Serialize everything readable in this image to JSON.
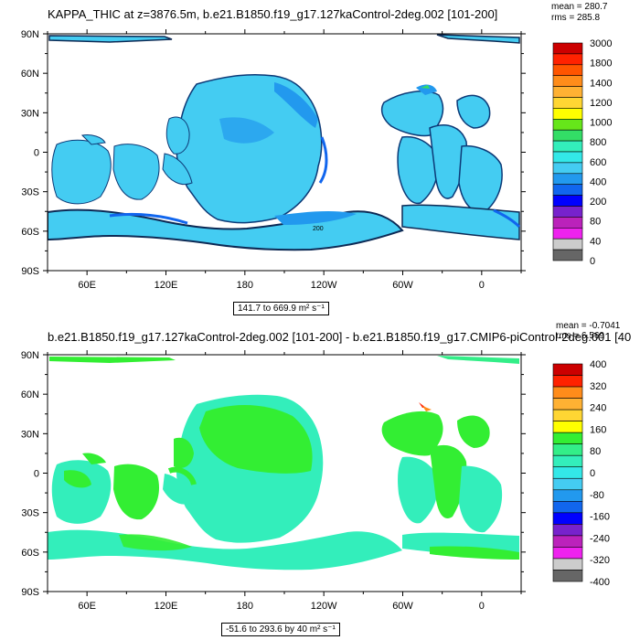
{
  "panels": [
    {
      "title": "KAPPA_THIC at z=3876.5m, b.e21.B1850.f19_g17.127kaControl-2deg.002 [101-200]",
      "stats": {
        "mean": "mean = 280.7",
        "rms": "rms = 285.8"
      },
      "range_text": "141.7 to 669.9 m² s⁻¹",
      "contour_label": "200",
      "colorbar_labels": [
        "3000",
        "1800",
        "1400",
        "1200",
        "1000",
        "800",
        "600",
        "400",
        "200",
        "80",
        "40",
        "0"
      ],
      "colorbar_colors": [
        "#cc0000",
        "#ff2200",
        "#ff5500",
        "#ff8c1a",
        "#ffb133",
        "#ffd633",
        "#ffff00",
        "#66e61a",
        "#33dd66",
        "#33eebb",
        "#33e8e8",
        "#44ccf2",
        "#2299ee",
        "#1166ee",
        "#0000ff",
        "#7722cc",
        "#bb22bb",
        "#ee22ee",
        "#cccccc",
        "#666666"
      ]
    },
    {
      "title": "b.e21.B1850.f19_g17.127kaControl-2deg.002 [101-200] - b.e21.B1850.f19_g17.CMIP6-piControl-2deg.001 [40",
      "stats": {
        "mean": "mean = -0.7041",
        "rms": "rms = 6.569"
      },
      "range_text": "-51.6 to 293.6 by 40 m² s⁻¹",
      "colorbar_labels": [
        "400",
        "320",
        "240",
        "160",
        "80",
        "0",
        "-80",
        "-160",
        "-240",
        "-320",
        "-400"
      ],
      "colorbar_colors": [
        "#cc0000",
        "#ff2200",
        "#ff8c1a",
        "#ffb133",
        "#ffd633",
        "#ffff00",
        "#33ee33",
        "#33ee88",
        "#33eebb",
        "#33e8e8",
        "#44ccf2",
        "#2299ee",
        "#1166ee",
        "#0000ff",
        "#7722cc",
        "#bb22bb",
        "#ee22ee",
        "#cccccc",
        "#666666"
      ]
    }
  ],
  "chart_data": [
    {
      "type": "heatmap",
      "title": "KAPPA_THIC at z=3876.5m, b.e21.B1850.f19_g17.127kaControl-2deg.002 [101-200]",
      "projection": "cylindrical equidistant, longitude 30E to 30E",
      "x_tick_labels": [
        "60E",
        "120E",
        "180",
        "120W",
        "60W",
        "0"
      ],
      "y_tick_labels": [
        "90N",
        "60N",
        "30N",
        "0",
        "30S",
        "60S",
        "90S"
      ],
      "xlim": [
        30,
        390
      ],
      "ylim": [
        -90,
        90
      ],
      "units": "m² s⁻¹",
      "mean": 280.7,
      "rms": 285.8,
      "min": 141.7,
      "max": 669.9,
      "contour_levels": [
        0,
        40,
        80,
        200,
        400,
        600,
        800,
        1000,
        1200,
        1400,
        1800,
        3000
      ],
      "dominant_level_band": [
        200,
        400
      ],
      "dominant_color": "#44ccf2"
    },
    {
      "type": "heatmap",
      "title": "b.e21.B1850.f19_g17.127kaControl-2deg.002 [101-200] - b.e21.B1850.f19_g17.CMIP6-piControl-2deg.001 [40",
      "projection": "cylindrical equidistant, longitude 30E to 30E",
      "x_tick_labels": [
        "60E",
        "120E",
        "180",
        "120W",
        "60W",
        "0"
      ],
      "y_tick_labels": [
        "90N",
        "60N",
        "30N",
        "0",
        "30S",
        "60S",
        "90S"
      ],
      "xlim": [
        30,
        390
      ],
      "ylim": [
        -90,
        90
      ],
      "units": "m² s⁻¹",
      "mean": -0.7041,
      "rms": 6.569,
      "min": -51.6,
      "max": 293.6,
      "contour_interval": 40,
      "contour_levels": [
        -400,
        -320,
        -240,
        -160,
        -80,
        0,
        80,
        160,
        240,
        320,
        400
      ],
      "dominant_level_bands": [
        [
          0,
          80
        ],
        [
          -80,
          0
        ]
      ],
      "dominant_colors": [
        "#33ee33",
        "#33eebb"
      ]
    }
  ]
}
